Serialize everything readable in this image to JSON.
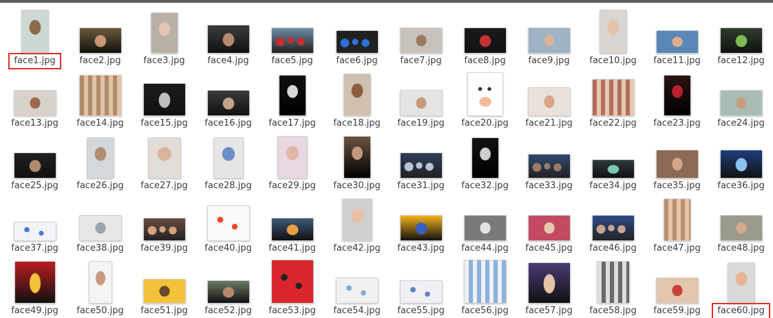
{
  "window": {
    "title": ""
  },
  "files": [
    {
      "name": "face1.jpg",
      "highlighted": true,
      "tw": 40,
      "th": 64,
      "c1": "#cdd8d4",
      "c2": "#8b6b4a",
      "kind": "portrait-light"
    },
    {
      "name": "face2.jpg",
      "highlighted": false,
      "tw": 62,
      "th": 38,
      "c1": "#6a5a3a",
      "c2": "#c99872",
      "kind": "landscape-dark"
    },
    {
      "name": "face3.jpg",
      "highlighted": false,
      "tw": 40,
      "th": 60,
      "c1": "#b9b0a8",
      "c2": "#e3c7b3",
      "kind": "portrait-light"
    },
    {
      "name": "face4.jpg",
      "highlighted": false,
      "tw": 62,
      "th": 42,
      "c1": "#3b3b3b",
      "c2": "#b5896c",
      "kind": "landscape-dark"
    },
    {
      "name": "face5.jpg",
      "highlighted": false,
      "tw": 62,
      "th": 38,
      "c1": "#6d8aa6",
      "c2": "#c0302e",
      "kind": "group"
    },
    {
      "name": "face6.jpg",
      "highlighted": false,
      "tw": 62,
      "th": 34,
      "c1": "#202020",
      "c2": "#2d6fd8",
      "kind": "group"
    },
    {
      "name": "face7.jpg",
      "highlighted": false,
      "tw": 62,
      "th": 38,
      "c1": "#c7c2bc",
      "c2": "#9b7a5c",
      "kind": "landscape-light"
    },
    {
      "name": "face8.jpg",
      "highlighted": false,
      "tw": 62,
      "th": 38,
      "c1": "#1a1a1a",
      "c2": "#c43232",
      "kind": "landscape-dark"
    },
    {
      "name": "face9.jpg",
      "highlighted": false,
      "tw": 62,
      "th": 38,
      "c1": "#9fb3c4",
      "c2": "#d6b39a",
      "kind": "landscape-light"
    },
    {
      "name": "face10.jpg",
      "highlighted": false,
      "tw": 40,
      "th": 64,
      "c1": "#d9d5d0",
      "c2": "#e6c2ac",
      "kind": "portrait-light"
    },
    {
      "name": "face11.jpg",
      "highlighted": false,
      "tw": 62,
      "th": 34,
      "c1": "#5a86b8",
      "c2": "#e0b08e",
      "kind": "landscape-light"
    },
    {
      "name": "face12.jpg",
      "highlighted": false,
      "tw": 62,
      "th": 38,
      "c1": "#2f3b2c",
      "c2": "#7dba54",
      "kind": "landscape-dark"
    },
    {
      "name": "face13.jpg",
      "highlighted": false,
      "tw": 62,
      "th": 38,
      "c1": "#d8d2cc",
      "c2": "#9b6b4e",
      "kind": "landscape-light"
    },
    {
      "name": "face14.jpg",
      "highlighted": false,
      "tw": 62,
      "th": 60,
      "c1": "#b08a6a",
      "c2": "#e2c2a6",
      "kind": "mosaic"
    },
    {
      "name": "face15.jpg",
      "highlighted": false,
      "tw": 62,
      "th": 48,
      "c1": "#1b1b1b",
      "c2": "#bfbfbf",
      "kind": "landscape-dark"
    },
    {
      "name": "face16.jpg",
      "highlighted": false,
      "tw": 62,
      "th": 38,
      "c1": "#3a3a3a",
      "c2": "#c4a488",
      "kind": "landscape-dark"
    },
    {
      "name": "face17.jpg",
      "highlighted": false,
      "tw": 40,
      "th": 60,
      "c1": "#111111",
      "c2": "#d8d8d8",
      "kind": "portrait-dark"
    },
    {
      "name": "face18.jpg",
      "highlighted": false,
      "tw": 40,
      "th": 62,
      "c1": "#cfc0b0",
      "c2": "#8c5c3c",
      "kind": "portrait-light"
    },
    {
      "name": "face19.jpg",
      "highlighted": false,
      "tw": 62,
      "th": 38,
      "c1": "#e4e4e4",
      "c2": "#c49c7c",
      "kind": "landscape-light"
    },
    {
      "name": "face20.jpg",
      "highlighted": false,
      "tw": 52,
      "th": 64,
      "c1": "#ffffff",
      "c2": "#f1b89a",
      "kind": "cartoon"
    },
    {
      "name": "face21.jpg",
      "highlighted": false,
      "tw": 62,
      "th": 42,
      "c1": "#e9e2dc",
      "c2": "#d9a488",
      "kind": "landscape-light"
    },
    {
      "name": "face22.jpg",
      "highlighted": false,
      "tw": 62,
      "th": 54,
      "c1": "#b47058",
      "c2": "#e7c8b3",
      "kind": "mosaic"
    },
    {
      "name": "face23.jpg",
      "highlighted": false,
      "tw": 40,
      "th": 60,
      "c1": "#2a1414",
      "c2": "#b8202a",
      "kind": "portrait-dark"
    },
    {
      "name": "face24.jpg",
      "highlighted": false,
      "tw": 62,
      "th": 38,
      "c1": "#a9bcb6",
      "c2": "#c89e80",
      "kind": "landscape-light"
    },
    {
      "name": "face25.jpg",
      "highlighted": false,
      "tw": 62,
      "th": 38,
      "c1": "#1f1f1f",
      "c2": "#b08a6e",
      "kind": "landscape-dark"
    },
    {
      "name": "face26.jpg",
      "highlighted": false,
      "tw": 40,
      "th": 60,
      "c1": "#d2d8dc",
      "c2": "#b08c72",
      "kind": "portrait-light"
    },
    {
      "name": "face27.jpg",
      "highlighted": false,
      "tw": 48,
      "th": 60,
      "c1": "#e2ddd8",
      "c2": "#d8b49c",
      "kind": "portrait-light"
    },
    {
      "name": "face28.jpg",
      "highlighted": false,
      "tw": 44,
      "th": 60,
      "c1": "#e6e6e6",
      "c2": "#6b8fc6",
      "kind": "portrait-light"
    },
    {
      "name": "face29.jpg",
      "highlighted": false,
      "tw": 44,
      "th": 62,
      "c1": "#e9d7e2",
      "c2": "#e0b7a6",
      "kind": "portrait-light"
    },
    {
      "name": "face30.jpg",
      "highlighted": false,
      "tw": 40,
      "th": 62,
      "c1": "#6a5240",
      "c2": "#c2987a",
      "kind": "portrait-dark"
    },
    {
      "name": "face31.jpg",
      "highlighted": false,
      "tw": 62,
      "th": 38,
      "c1": "#2e3e5a",
      "c2": "#b8c4d4",
      "kind": "group"
    },
    {
      "name": "face32.jpg",
      "highlighted": false,
      "tw": 40,
      "th": 60,
      "c1": "#121212",
      "c2": "#cdcdcd",
      "kind": "portrait-dark"
    },
    {
      "name": "face33.jpg",
      "highlighted": false,
      "tw": 62,
      "th": 36,
      "c1": "#2e4a6e",
      "c2": "#9a7a66",
      "kind": "group"
    },
    {
      "name": "face34.jpg",
      "highlighted": false,
      "tw": 62,
      "th": 28,
      "c1": "#2f3a3f",
      "c2": "#7ec7b0",
      "kind": "landscape-dark"
    },
    {
      "name": "face35.jpg",
      "highlighted": false,
      "tw": 62,
      "th": 42,
      "c1": "#8c6a56",
      "c2": "#d6a68c",
      "kind": "landscape-light"
    },
    {
      "name": "face36.jpg",
      "highlighted": false,
      "tw": 62,
      "th": 42,
      "c1": "#1d3f7a",
      "c2": "#8bc0f2",
      "kind": "landscape-dark"
    },
    {
      "name": "face37.jpg",
      "highlighted": false,
      "tw": 62,
      "th": 28,
      "c1": "#f1f3f8",
      "c2": "#4d79d6",
      "kind": "diagram"
    },
    {
      "name": "face38.jpg",
      "highlighted": false,
      "tw": 62,
      "th": 38,
      "c1": "#e7e7e5",
      "c2": "#9aa6aa",
      "kind": "landscape-light"
    },
    {
      "name": "face39.jpg",
      "highlighted": false,
      "tw": 62,
      "th": 34,
      "c1": "#6a4b42",
      "c2": "#d2a27c",
      "kind": "group"
    },
    {
      "name": "face40.jpg",
      "highlighted": false,
      "tw": 62,
      "th": 52,
      "c1": "#fafafa",
      "c2": "#ee4a32",
      "kind": "diagram"
    },
    {
      "name": "face41.jpg",
      "highlighted": false,
      "tw": 62,
      "th": 34,
      "c1": "#3e5878",
      "c2": "#e7a23c",
      "kind": "landscape-dark"
    },
    {
      "name": "face42.jpg",
      "highlighted": false,
      "tw": 44,
      "th": 62,
      "c1": "#cfcfcf",
      "c2": "#e7c0a6",
      "kind": "portrait-light"
    },
    {
      "name": "face43.jpg",
      "highlighted": false,
      "tw": 62,
      "th": 38,
      "c1": "#f2b21a",
      "c2": "#3a5ec0",
      "kind": "landscape-dark"
    },
    {
      "name": "face44.jpg",
      "highlighted": false,
      "tw": 62,
      "th": 38,
      "c1": "#7a7a7a",
      "c2": "#e3e3e3",
      "kind": "landscape-light"
    },
    {
      "name": "face45.jpg",
      "highlighted": false,
      "tw": 62,
      "th": 38,
      "c1": "#c44a62",
      "c2": "#e6c6b0",
      "kind": "landscape-light"
    },
    {
      "name": "face46.jpg",
      "highlighted": false,
      "tw": 62,
      "th": 38,
      "c1": "#2c4a8a",
      "c2": "#c9a48a",
      "kind": "group"
    },
    {
      "name": "face47.jpg",
      "highlighted": false,
      "tw": 40,
      "th": 62,
      "c1": "#b89070",
      "c2": "#e9c4a8",
      "kind": "mosaic"
    },
    {
      "name": "face48.jpg",
      "highlighted": false,
      "tw": 62,
      "th": 38,
      "c1": "#9a9a8c",
      "c2": "#d2aa8c",
      "kind": "landscape-light"
    },
    {
      "name": "face49.jpg",
      "highlighted": false,
      "tw": 60,
      "th": 62,
      "c1": "#b81e22",
      "c2": "#f1c23a",
      "kind": "landscape-dark"
    },
    {
      "name": "face50.jpg",
      "highlighted": false,
      "tw": 34,
      "th": 62,
      "c1": "#f4f4f2",
      "c2": "#c89a80",
      "kind": "portrait-light"
    },
    {
      "name": "face51.jpg",
      "highlighted": false,
      "tw": 62,
      "th": 36,
      "c1": "#f2c23a",
      "c2": "#6a4a2e",
      "kind": "landscape-light"
    },
    {
      "name": "face52.jpg",
      "highlighted": false,
      "tw": 62,
      "th": 34,
      "c1": "#6a7a62",
      "c2": "#b48a6c",
      "kind": "landscape-dark"
    },
    {
      "name": "face53.jpg",
      "highlighted": false,
      "tw": 62,
      "th": 64,
      "c1": "#d8262c",
      "c2": "#222222",
      "kind": "diagram"
    },
    {
      "name": "face54.jpg",
      "highlighted": false,
      "tw": 62,
      "th": 38,
      "c1": "#f1f1f1",
      "c2": "#7eaedc",
      "kind": "diagram"
    },
    {
      "name": "face55.jpg",
      "highlighted": false,
      "tw": 62,
      "th": 34,
      "c1": "#eef0f4",
      "c2": "#5a80c2",
      "kind": "diagram"
    },
    {
      "name": "face56.jpg",
      "highlighted": false,
      "tw": 62,
      "th": 64,
      "c1": "#eef1f4",
      "c2": "#8ab2da",
      "kind": "mosaic"
    },
    {
      "name": "face57.jpg",
      "highlighted": false,
      "tw": 62,
      "th": 60,
      "c1": "#4a3a72",
      "c2": "#e6c2a8",
      "kind": "landscape-dark"
    },
    {
      "name": "face58.jpg",
      "highlighted": false,
      "tw": 48,
      "th": 62,
      "c1": "#dedede",
      "c2": "#6a6a6a",
      "kind": "mosaic"
    },
    {
      "name": "face59.jpg",
      "highlighted": false,
      "tw": 62,
      "th": 38,
      "c1": "#e2c6b0",
      "c2": "#c8423a",
      "kind": "landscape-light"
    },
    {
      "name": "face60.jpg",
      "highlighted": true,
      "tw": 40,
      "th": 60,
      "c1": "#d9d9d9",
      "c2": "#e6b496",
      "kind": "portrait-light"
    }
  ]
}
